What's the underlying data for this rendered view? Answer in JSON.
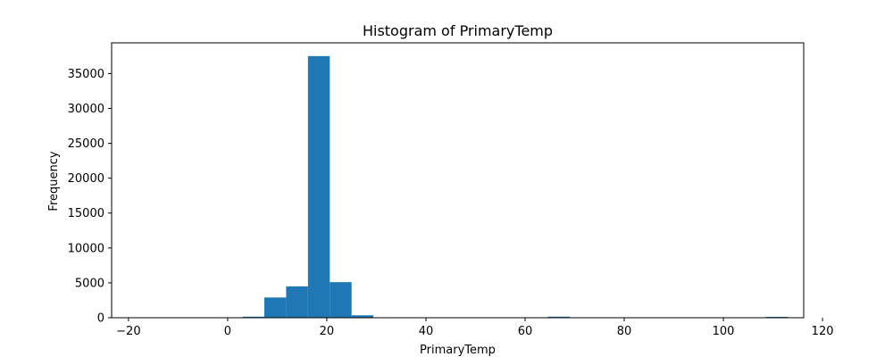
{
  "chart_data": {
    "type": "bar",
    "subtype": "histogram",
    "title": "Histogram of PrimaryTemp",
    "xlabel": "PrimaryTemp",
    "ylabel": "Frequency",
    "xlim": [
      -23.4,
      116.2
    ],
    "ylim": [
      0,
      39400
    ],
    "x_ticks": [
      -20,
      0,
      20,
      40,
      60,
      80,
      100,
      120
    ],
    "y_ticks": [
      0,
      5000,
      10000,
      15000,
      20000,
      25000,
      30000,
      35000
    ],
    "grid": false,
    "bar_color": "#1f77b4",
    "bins": [
      {
        "x0": -19.0,
        "x1": -14.6,
        "count": 0
      },
      {
        "x0": -14.6,
        "x1": -10.2,
        "count": 0
      },
      {
        "x0": -10.2,
        "x1": -5.8,
        "count": 0
      },
      {
        "x0": -5.8,
        "x1": -1.4,
        "count": 0
      },
      {
        "x0": -1.4,
        "x1": 3.0,
        "count": 0
      },
      {
        "x0": 3.0,
        "x1": 7.4,
        "count": 150
      },
      {
        "x0": 7.4,
        "x1": 11.8,
        "count": 2900
      },
      {
        "x0": 11.8,
        "x1": 16.2,
        "count": 4500
      },
      {
        "x0": 16.2,
        "x1": 20.6,
        "count": 37500
      },
      {
        "x0": 20.6,
        "x1": 25.0,
        "count": 5100
      },
      {
        "x0": 25.0,
        "x1": 29.4,
        "count": 350
      },
      {
        "x0": 29.4,
        "x1": 33.8,
        "count": 0
      },
      {
        "x0": 64.6,
        "x1": 69.0,
        "count": 150
      },
      {
        "x0": 108.6,
        "x1": 113.0,
        "count": 5
      }
    ]
  }
}
